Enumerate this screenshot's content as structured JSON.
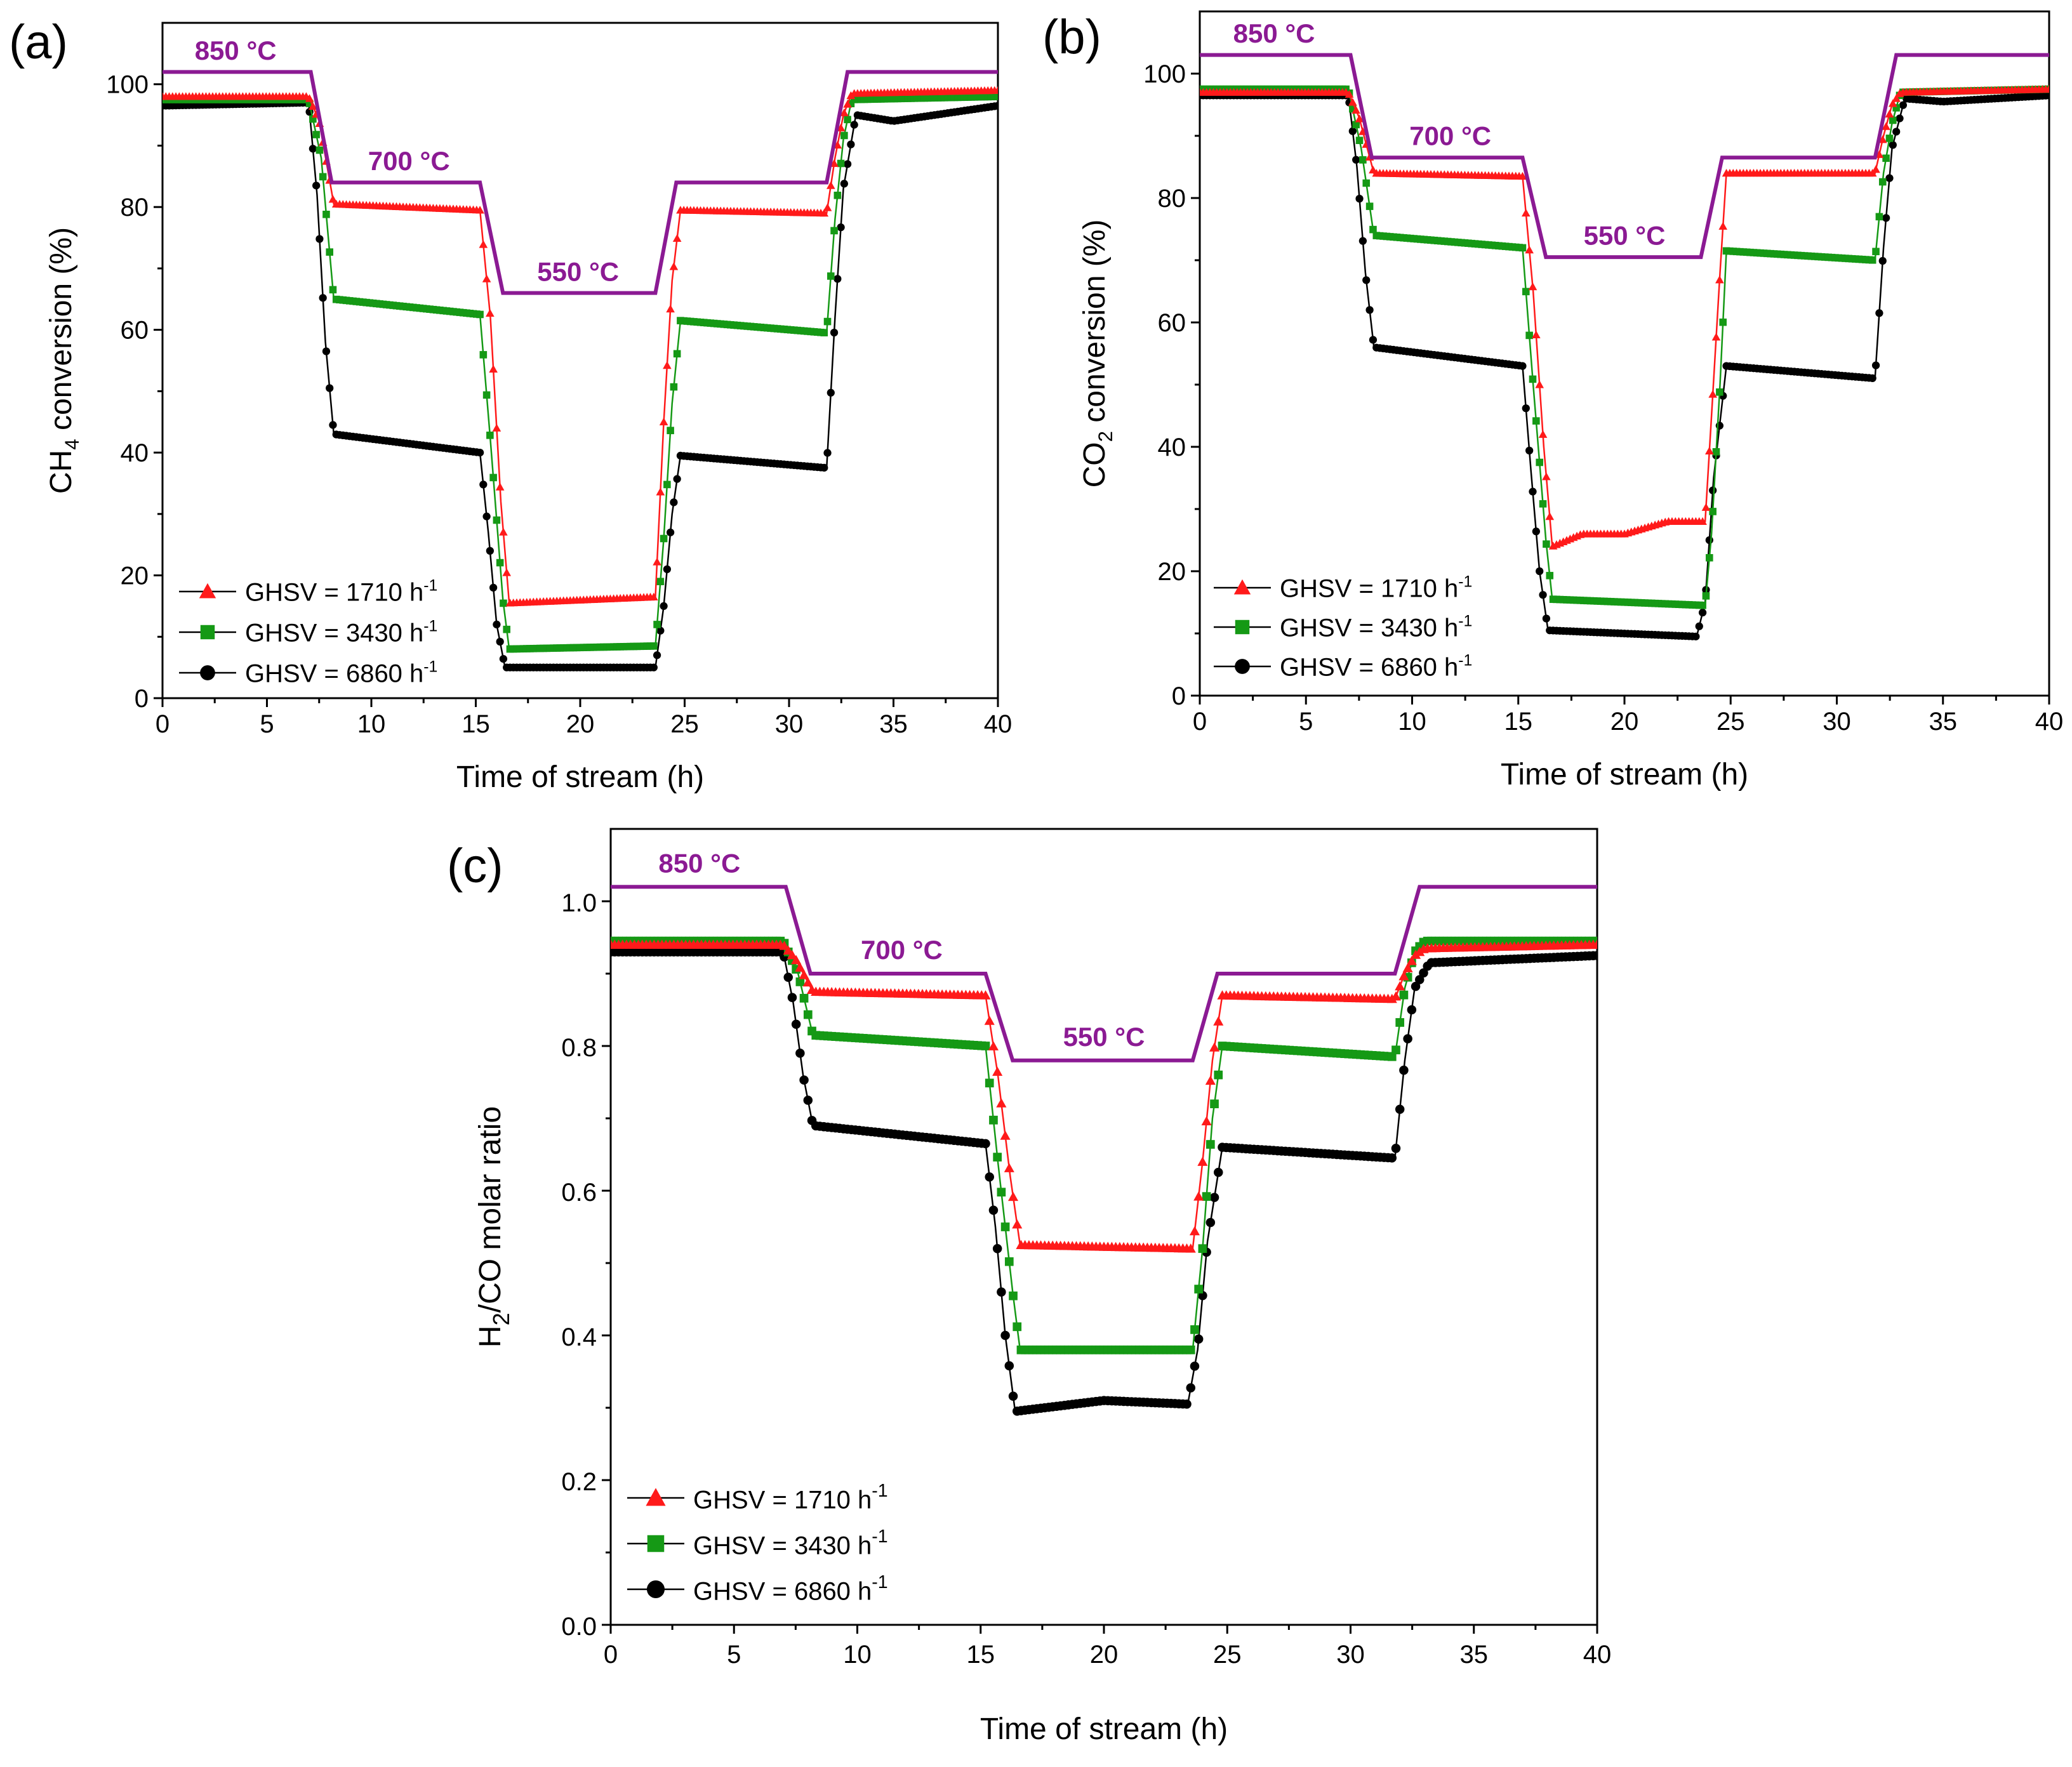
{
  "chart_data": [
    {
      "type": "line",
      "panel_label": "(a)",
      "xlabel": "Time of stream (h)",
      "ylabel": "CH4 conversion (%)",
      "ylabel_main": "CH",
      "ylabel_sub": "4",
      "ylabel_rest": " conversion (%)",
      "xlim": [
        0,
        40
      ],
      "ylim": [
        0,
        110
      ],
      "xticks": [
        0,
        5,
        10,
        15,
        20,
        25,
        30,
        35,
        40
      ],
      "yticks": [
        0,
        20,
        40,
        60,
        80,
        100
      ],
      "xtick_labels": [
        "0",
        "5",
        "10",
        "15",
        "20",
        "25",
        "30",
        "35",
        "40"
      ],
      "ytick_labels": [
        "0",
        "20",
        "40",
        "60",
        "80",
        "100"
      ],
      "temperature_profile": {
        "color": "#8b1a93",
        "x": [
          0,
          7.1,
          8.1,
          15.2,
          16.3,
          23.6,
          24.6,
          31.8,
          32.8,
          40
        ],
        "y": [
          102,
          102,
          84,
          84,
          66,
          66,
          84,
          84,
          102,
          102
        ],
        "labels": [
          {
            "text": "850 °C",
            "x": 3.5,
            "y": 104
          },
          {
            "text": "700 °C",
            "x": 11.8,
            "y": 86
          },
          {
            "text": "550 °C",
            "x": 19.9,
            "y": 68
          }
        ]
      },
      "series": [
        {
          "name": "GHSV = 1710 h-1",
          "legend_main": "GHSV = 1710 h",
          "legend_sup": "-1",
          "color": "#ff1a1a",
          "marker": "triangle",
          "x": [
            0,
            7,
            7.5,
            8.2,
            15.2,
            15.7,
            16.2,
            16.6,
            23.6,
            24.0,
            24.4,
            24.8,
            31.8,
            32.2,
            32.6,
            33.0,
            40
          ],
          "y": [
            98,
            98,
            94,
            80.5,
            79.5,
            62,
            32,
            15.5,
            16.5,
            45,
            68,
            79.5,
            79,
            88,
            95,
            98.5,
            99
          ]
        },
        {
          "name": "GHSV = 3430 h-1",
          "legend_main": "GHSV = 3430 h",
          "legend_sup": "-1",
          "color": "#159915",
          "marker": "square",
          "x": [
            0,
            7,
            7.6,
            8.2,
            15.2,
            15.7,
            16.3,
            16.6,
            23.6,
            24.0,
            24.4,
            24.8,
            31.8,
            32.2,
            32.6,
            33.0,
            40
          ],
          "y": [
            97.5,
            97.5,
            88,
            65,
            62.5,
            42,
            16,
            8,
            8.5,
            26,
            48,
            61.5,
            59.5,
            78,
            91,
            97.5,
            98
          ]
        },
        {
          "name": "GHSV = 6860 h-1",
          "legend_main": "GHSV = 6860 h",
          "legend_sup": "-1",
          "color": "#000000",
          "marker": "circle",
          "x": [
            0,
            7,
            7.4,
            7.8,
            8.2,
            15.2,
            15.6,
            16.0,
            16.4,
            23.6,
            24.0,
            24.4,
            24.8,
            31.8,
            32.2,
            32.6,
            33.2,
            35,
            40
          ],
          "y": [
            96.5,
            97,
            82,
            58,
            43,
            40,
            27,
            12,
            5,
            5,
            15,
            30,
            39.5,
            37.5,
            62,
            83,
            95,
            94,
            96.5
          ]
        }
      ]
    },
    {
      "type": "line",
      "panel_label": "(b)",
      "xlabel": "Time of stream  (h)",
      "ylabel": "CO2 conversion (%)",
      "ylabel_main": "CO",
      "ylabel_sub": "2",
      "ylabel_rest": " conversion (%)",
      "xlim": [
        0,
        40
      ],
      "ylim": [
        0,
        110
      ],
      "xticks": [
        0,
        5,
        10,
        15,
        20,
        25,
        30,
        35,
        40
      ],
      "yticks": [
        0,
        20,
        40,
        60,
        80,
        100
      ],
      "xtick_labels": [
        "0",
        "5",
        "10",
        "15",
        "20",
        "25",
        "30",
        "35",
        "40"
      ],
      "ytick_labels": [
        "0",
        "20",
        "40",
        "60",
        "80",
        "100"
      ],
      "temperature_profile": {
        "color": "#8b1a93",
        "x": [
          0,
          7.1,
          8.1,
          15.2,
          16.3,
          23.6,
          24.6,
          31.8,
          32.8,
          40
        ],
        "y": [
          103,
          103,
          86.5,
          86.5,
          70.5,
          70.5,
          86.5,
          86.5,
          103,
          103
        ],
        "labels": [
          {
            "text": "850 °C",
            "x": 3.5,
            "y": 105
          },
          {
            "text": "700 °C",
            "x": 11.8,
            "y": 88.5
          },
          {
            "text": "550 °C",
            "x": 20,
            "y": 72.5
          }
        ]
      },
      "series": [
        {
          "name": "GHSV = 1710 h-1",
          "legend_main": "GHSV = 1710 h",
          "legend_sup": "-1",
          "color": "#ff1a1a",
          "marker": "triangle",
          "x": [
            0,
            7,
            7.5,
            8.2,
            15.2,
            15.7,
            16.2,
            16.6,
            18,
            20,
            22,
            23.8,
            24.1,
            24.5,
            24.8,
            31.8,
            32.2,
            32.6,
            33.0,
            40
          ],
          "y": [
            97,
            97,
            93,
            84,
            83.5,
            65,
            40,
            24,
            26,
            26,
            28,
            28,
            45,
            68,
            84,
            84,
            90,
            95,
            97,
            97.5
          ]
        },
        {
          "name": "GHSV = 3430 h-1",
          "legend_main": "GHSV = 3430 h",
          "legend_sup": "-1",
          "color": "#159915",
          "marker": "square",
          "x": [
            0,
            7,
            7.6,
            8.2,
            15.2,
            15.7,
            16.3,
            16.6,
            23.8,
            24.1,
            24.5,
            24.8,
            31.8,
            32.2,
            32.6,
            33.0,
            40
          ],
          "y": [
            97.5,
            97.5,
            88,
            74,
            72,
            50,
            25,
            15.5,
            14.5,
            26,
            50,
            71.5,
            70,
            84,
            92,
            97,
            97.5
          ]
        },
        {
          "name": "GHSV = 6860 h-1",
          "legend_main": "GHSV = 6860 h",
          "legend_sup": "-1",
          "color": "#000000",
          "marker": "circle",
          "x": [
            0,
            7,
            7.4,
            7.8,
            8.2,
            15.2,
            15.6,
            16.0,
            16.4,
            23.4,
            23.8,
            24.2,
            24.8,
            31.8,
            32.2,
            32.6,
            33.2,
            35,
            40
          ],
          "y": [
            96.5,
            96.5,
            85,
            68,
            56,
            53,
            36,
            20,
            10.5,
            9.5,
            15,
            35,
            53,
            51,
            72,
            88,
            96,
            95.5,
            96.5
          ]
        }
      ]
    },
    {
      "type": "line",
      "panel_label": "(c)",
      "xlabel": "Time of stream (h)",
      "ylabel": "H2/CO molar ratio",
      "ylabel_main": "H",
      "ylabel_sub": "2",
      "ylabel_rest": "/CO molar ratio",
      "xlim": [
        0,
        40
      ],
      "ylim": [
        0,
        1.1
      ],
      "xticks": [
        0,
        5,
        10,
        15,
        20,
        25,
        30,
        35,
        40
      ],
      "yticks": [
        0,
        0.2,
        0.4,
        0.6,
        0.8,
        1.0
      ],
      "xtick_labels": [
        "0",
        "5",
        "10",
        "15",
        "20",
        "25",
        "30",
        "35",
        "40"
      ],
      "ytick_labels": [
        "0.0",
        "0.2",
        "0.4",
        "0.6",
        "0.8",
        "1.0"
      ],
      "temperature_profile": {
        "color": "#8b1a93",
        "x": [
          0,
          7.1,
          8.1,
          15.2,
          16.3,
          23.6,
          24.6,
          31.8,
          32.8,
          40
        ],
        "y": [
          1.02,
          1.02,
          0.9,
          0.9,
          0.78,
          0.78,
          0.9,
          0.9,
          1.02,
          1.02
        ],
        "labels": [
          {
            "text": "850 °C",
            "x": 3.6,
            "y": 1.04
          },
          {
            "text": "700 °C",
            "x": 11.8,
            "y": 0.92
          },
          {
            "text": "550 °C",
            "x": 20,
            "y": 0.8
          }
        ]
      },
      "series": [
        {
          "name": "GHSV = 1710 h-1",
          "legend_main": "GHSV = 1710 h",
          "legend_sup": "-1",
          "color": "#ff1a1a",
          "marker": "triangle",
          "x": [
            0,
            7,
            7.5,
            8.2,
            15.2,
            15.7,
            16.2,
            16.6,
            23.6,
            24.0,
            24.4,
            24.8,
            31.8,
            32.2,
            32.6,
            33.0,
            40
          ],
          "y": [
            0.94,
            0.94,
            0.92,
            0.875,
            0.87,
            0.76,
            0.62,
            0.525,
            0.52,
            0.64,
            0.78,
            0.87,
            0.865,
            0.9,
            0.925,
            0.935,
            0.94
          ]
        },
        {
          "name": "GHSV = 3430 h-1",
          "legend_main": "GHSV = 3430 h",
          "legend_sup": "-1",
          "color": "#159915",
          "marker": "square",
          "x": [
            0,
            7,
            7.6,
            8.2,
            15.2,
            15.7,
            16.3,
            16.6,
            23.6,
            24.0,
            24.4,
            24.8,
            31.8,
            32.2,
            32.6,
            33.0,
            40
          ],
          "y": [
            0.945,
            0.945,
            0.9,
            0.815,
            0.8,
            0.64,
            0.46,
            0.38,
            0.38,
            0.52,
            0.7,
            0.8,
            0.785,
            0.88,
            0.93,
            0.945,
            0.945
          ]
        },
        {
          "name": "GHSV = 6860 h-1",
          "legend_main": "GHSV = 6860 h",
          "legend_sup": "-1",
          "color": "#000000",
          "marker": "circle",
          "x": [
            0,
            7,
            7.4,
            7.8,
            8.2,
            15.2,
            15.6,
            16.0,
            16.4,
            20,
            23.4,
            23.8,
            24.2,
            24.8,
            31.8,
            32.2,
            32.6,
            33.2,
            40
          ],
          "y": [
            0.93,
            0.93,
            0.86,
            0.76,
            0.69,
            0.665,
            0.55,
            0.4,
            0.295,
            0.31,
            0.305,
            0.38,
            0.53,
            0.66,
            0.645,
            0.78,
            0.88,
            0.915,
            0.925
          ]
        }
      ]
    }
  ]
}
